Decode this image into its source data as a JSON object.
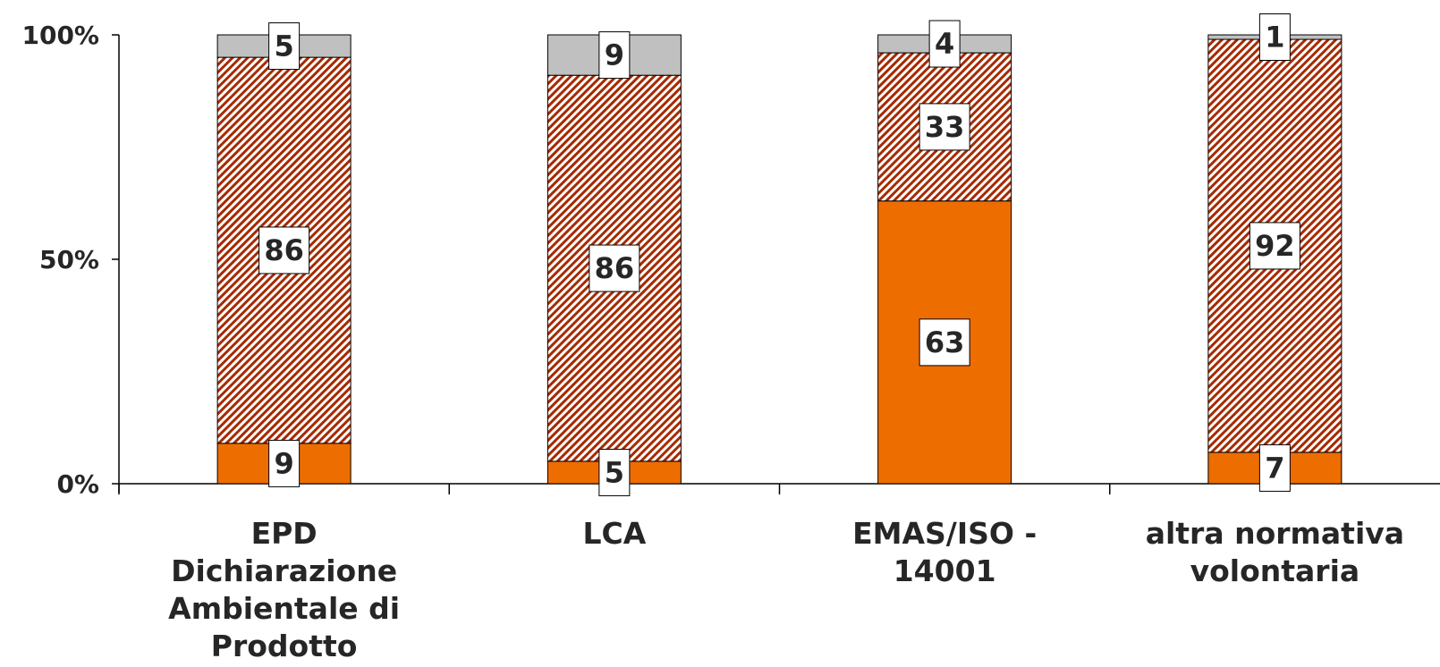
{
  "chart_data": {
    "type": "bar",
    "stacked": true,
    "percent": true,
    "categories": [
      [
        "EPD",
        "Dichiarazione",
        "Ambientale di",
        "Prodotto"
      ],
      [
        "LCA"
      ],
      [
        "EMAS/ISO -",
        "14001"
      ],
      [
        "altra normativa",
        "volontaria"
      ]
    ],
    "series": [
      {
        "values": [
          9,
          5,
          63,
          7
        ],
        "color": "#ED6D00",
        "pattern": "solid"
      },
      {
        "values": [
          86,
          86,
          33,
          92
        ],
        "color": "#A52A00",
        "pattern": "diagonal-hatch"
      },
      {
        "values": [
          5,
          9,
          4,
          1
        ],
        "color": "#C0C0C0",
        "pattern": "solid"
      }
    ],
    "y_ticks": [
      "0%",
      "50%",
      "100%"
    ],
    "ylim": [
      0,
      100
    ],
    "legend": "none",
    "grid": false
  }
}
